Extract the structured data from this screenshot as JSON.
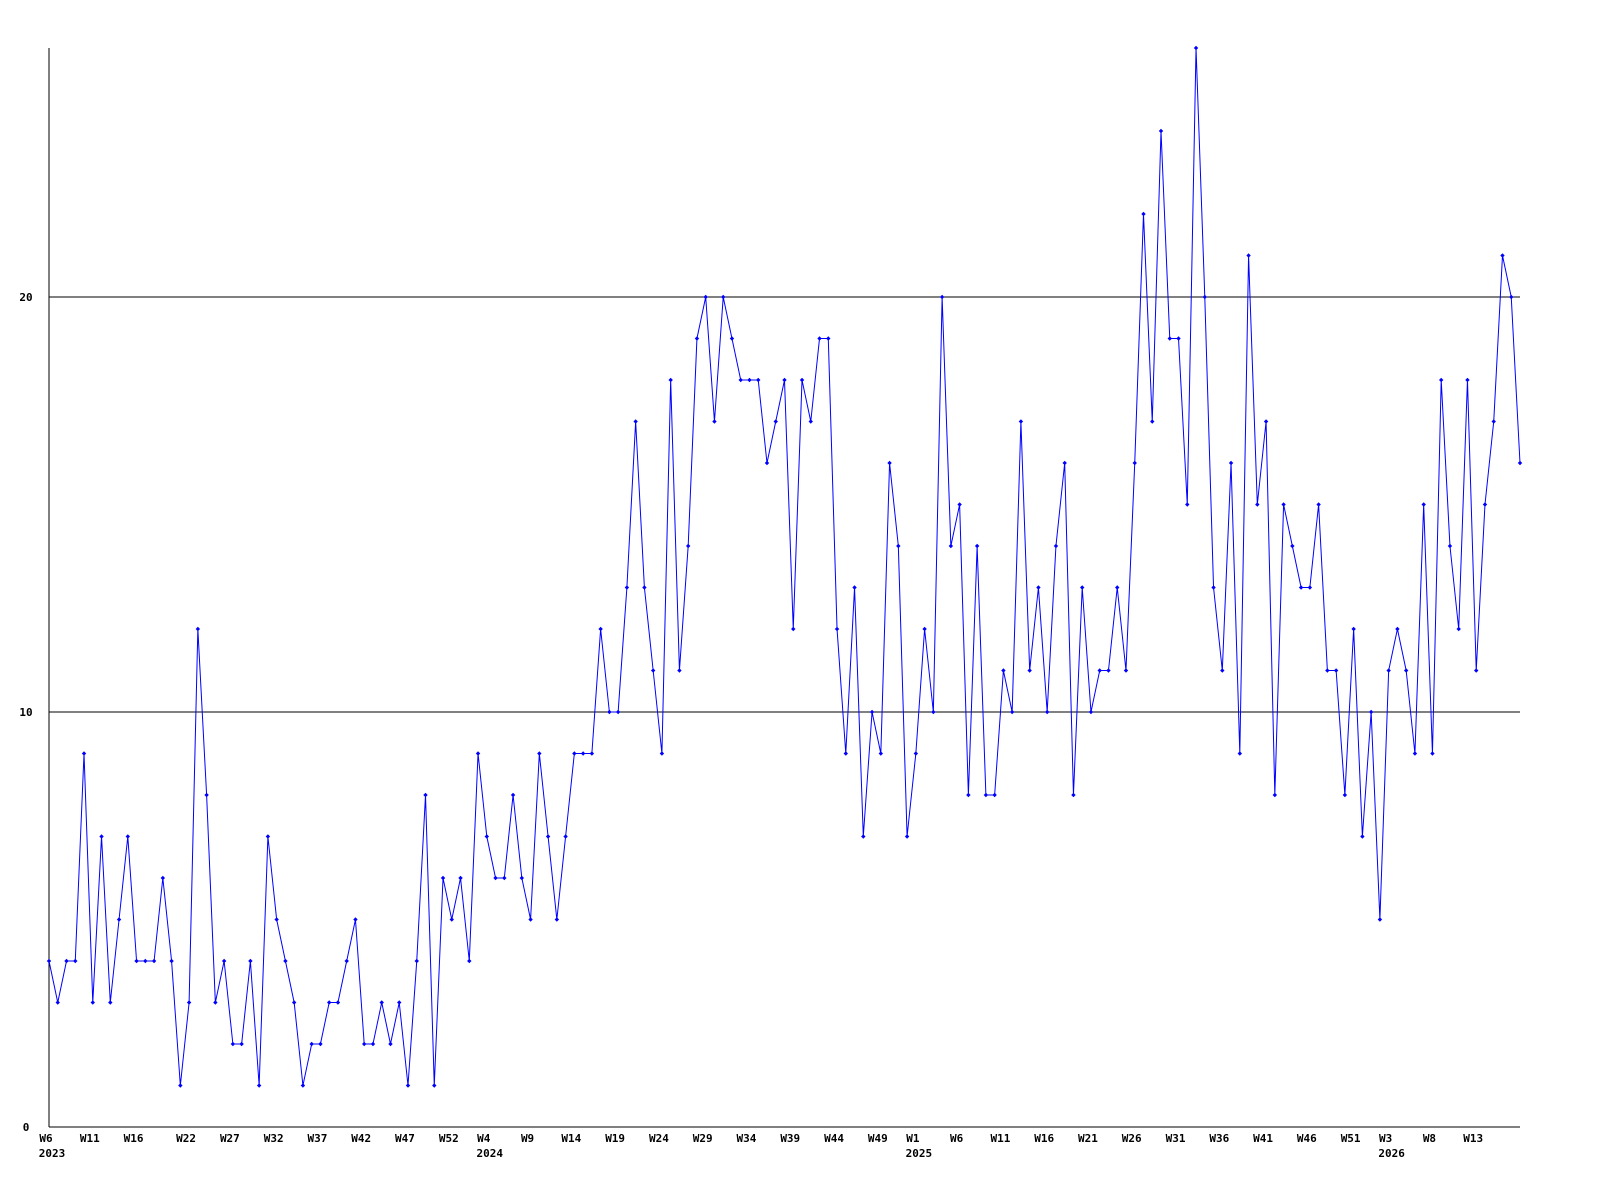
{
  "chart_data": {
    "type": "line",
    "color": "#0000ff",
    "grid": true,
    "ylim": [
      0,
      26
    ],
    "yticks": [
      0,
      10,
      20
    ],
    "categories": [
      "W6",
      null,
      null,
      null,
      null,
      "W11",
      null,
      null,
      null,
      null,
      "W16",
      null,
      null,
      null,
      null,
      null,
      "W22",
      null,
      null,
      null,
      null,
      "W27",
      null,
      null,
      null,
      null,
      "W32",
      null,
      null,
      null,
      null,
      "W37",
      null,
      null,
      null,
      null,
      "W42",
      null,
      null,
      null,
      null,
      "W47",
      null,
      null,
      null,
      null,
      "W52",
      null,
      null,
      null,
      "W4",
      null,
      null,
      null,
      null,
      "W9",
      null,
      null,
      null,
      null,
      "W14",
      null,
      null,
      null,
      null,
      "W19",
      null,
      null,
      null,
      null,
      "W24",
      null,
      null,
      null,
      null,
      "W29",
      null,
      null,
      null,
      null,
      "W34",
      null,
      null,
      null,
      null,
      "W39",
      null,
      null,
      null,
      null,
      "W44",
      null,
      null,
      null,
      null,
      "W49",
      null,
      null,
      null,
      "W1",
      null,
      null,
      null,
      null,
      "W6",
      null,
      null,
      null,
      null,
      "W11",
      null,
      null,
      null,
      null,
      "W16",
      null,
      null,
      null,
      null,
      "W21",
      null,
      null,
      null,
      null,
      "W26",
      null,
      null,
      null,
      null,
      "W31",
      null,
      null,
      null,
      null,
      "W36",
      null,
      null,
      null,
      null,
      "W41",
      null,
      null,
      null,
      null,
      "W46",
      null,
      null,
      null,
      null,
      "W51",
      null,
      null,
      null,
      "W3",
      null,
      null,
      null,
      null,
      "W8",
      null,
      null,
      null,
      null,
      "W13",
      null,
      null,
      null,
      null,
      null
    ],
    "category_years": [
      "2023",
      null,
      null,
      null,
      null,
      null,
      null,
      null,
      null,
      null,
      null,
      null,
      null,
      null,
      null,
      null,
      null,
      null,
      null,
      null,
      null,
      null,
      null,
      null,
      null,
      null,
      null,
      null,
      null,
      null,
      null,
      null,
      null,
      null,
      null,
      null,
      null,
      null,
      null,
      null,
      null,
      null,
      null,
      null,
      null,
      null,
      null,
      null,
      null,
      null,
      "2024",
      null,
      null,
      null,
      null,
      null,
      null,
      null,
      null,
      null,
      null,
      null,
      null,
      null,
      null,
      null,
      null,
      null,
      null,
      null,
      null,
      null,
      null,
      null,
      null,
      null,
      null,
      null,
      null,
      null,
      null,
      null,
      null,
      null,
      null,
      null,
      null,
      null,
      null,
      null,
      null,
      null,
      null,
      null,
      null,
      null,
      null,
      null,
      null,
      "2025",
      null,
      null,
      null,
      null,
      null,
      null,
      null,
      null,
      null,
      null,
      null,
      null,
      null,
      null,
      null,
      null,
      null,
      null,
      null,
      null,
      null,
      null,
      null,
      null,
      null,
      null,
      null,
      null,
      null,
      null,
      null,
      null,
      null,
      null,
      null,
      null,
      null,
      null,
      null,
      null,
      null,
      null,
      null,
      null,
      null,
      null,
      null,
      null,
      null,
      null,
      null,
      null,
      null,
      "2026",
      null,
      null,
      null,
      null,
      null,
      null,
      null,
      null,
      null,
      null,
      null,
      null,
      null,
      null,
      null
    ],
    "values": [
      4,
      3,
      4,
      4,
      9,
      3,
      7,
      3,
      5,
      7,
      4,
      4,
      4,
      6,
      4,
      1,
      3,
      12,
      8,
      3,
      4,
      2,
      2,
      4,
      1,
      7,
      5,
      4,
      3,
      1,
      2,
      2,
      3,
      3,
      4,
      5,
      2,
      2,
      3,
      2,
      3,
      1,
      4,
      8,
      1,
      6,
      5,
      6,
      4,
      9,
      7,
      6,
      6,
      8,
      6,
      5,
      9,
      7,
      5,
      7,
      9,
      9,
      9,
      12,
      10,
      10,
      13,
      17,
      13,
      11,
      9,
      18,
      11,
      14,
      19,
      20,
      17,
      20,
      19,
      18,
      18,
      18,
      16,
      17,
      18,
      12,
      18,
      17,
      19,
      19,
      12,
      9,
      13,
      7,
      10,
      9,
      16,
      14,
      7,
      9,
      12,
      10,
      20,
      14,
      15,
      8,
      14,
      8,
      8,
      11,
      10,
      17,
      11,
      13,
      10,
      14,
      16,
      8,
      13,
      10,
      11,
      11,
      13,
      11,
      16,
      22,
      17,
      24,
      19,
      19,
      15,
      26,
      20,
      13,
      11,
      16,
      9,
      21,
      15,
      17,
      8,
      15,
      14,
      13,
      13,
      15,
      11,
      11,
      8,
      12,
      7,
      10,
      5,
      11,
      12,
      11,
      9,
      15,
      9,
      18,
      14,
      12,
      18,
      11,
      15,
      17,
      21,
      20,
      16
    ]
  }
}
